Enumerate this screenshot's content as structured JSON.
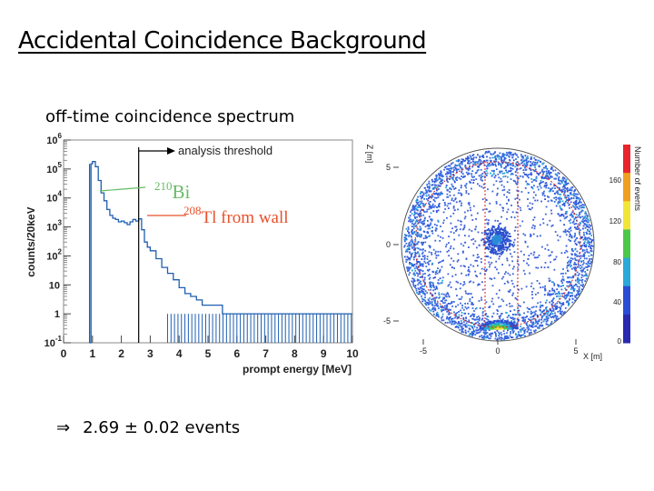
{
  "slide": {
    "title": "Accidental Coincidence Background",
    "subtitle": "off-time coincidence spectrum",
    "result_arrow": "⇒",
    "result_text": "2.69 ± 0.02 events"
  },
  "chart_data": [
    {
      "type": "line",
      "title": "",
      "xlabel": "prompt energy [MeV]",
      "ylabel": "counts/20keV",
      "xlim": [
        0,
        10
      ],
      "ylim": [
        0.1,
        1000000
      ],
      "yscale": "log",
      "x_ticks": [
        "0",
        "1",
        "2",
        "3",
        "4",
        "5",
        "6",
        "7",
        "8",
        "9",
        "10"
      ],
      "y_ticks": [
        {
          "base": "10",
          "exp": "-1"
        },
        {
          "base": "1",
          "exp": ""
        },
        {
          "base": "10",
          "exp": ""
        },
        {
          "base": "10",
          "exp": "2"
        },
        {
          "base": "10",
          "exp": "3"
        },
        {
          "base": "10",
          "exp": "4"
        },
        {
          "base": "10",
          "exp": "5"
        },
        {
          "base": "10",
          "exp": "6"
        }
      ],
      "threshold_energy": 2.6,
      "threshold_label": "analysis threshold",
      "annotations": [
        {
          "sup": "210",
          "text": "Bi",
          "color": "#66bb66",
          "points_to_x": 1.25
        },
        {
          "sup": "208",
          "text": "Tl from wall",
          "color": "#e8502a",
          "points_to_x": 2.6
        }
      ],
      "series": [
        {
          "name": "off-time coincidence",
          "color": "#1f5fb0",
          "x": [
            0.9,
            0.95,
            1.0,
            1.1,
            1.2,
            1.3,
            1.4,
            1.5,
            1.6,
            1.7,
            1.8,
            1.9,
            2.0,
            2.1,
            2.2,
            2.3,
            2.4,
            2.5,
            2.6,
            2.7,
            2.8,
            2.9,
            3.0,
            3.2,
            3.4,
            3.6,
            3.8,
            4.0,
            4.2,
            4.4,
            4.6,
            4.8,
            5.0,
            5.5,
            6.0,
            6.5,
            7.0,
            7.5,
            8.0,
            8.5,
            9.0,
            9.5,
            10.0
          ],
          "y": [
            0.1,
            150000,
            180000,
            120000,
            40000,
            15000,
            8000,
            4000,
            2500,
            2000,
            1800,
            1500,
            1600,
            1400,
            1200,
            1500,
            1800,
            1600,
            1900,
            800,
            300,
            200,
            150,
            80,
            40,
            25,
            15,
            8,
            5,
            4,
            3,
            2,
            2,
            1,
            1,
            1,
            1,
            1,
            1,
            1,
            1,
            1,
            1
          ]
        }
      ]
    },
    {
      "type": "heatmap",
      "title": "",
      "xlabel": "X [m]",
      "ylabel": "Z [m]",
      "colorbar_label": "Number of events",
      "x_ticks": [
        "-5",
        "0",
        "5"
      ],
      "y_ticks": [
        "5",
        "0",
        "-5"
      ],
      "colorbar_ticks": [
        "160",
        "120",
        "80",
        "40",
        "0"
      ],
      "colorbar_colors": [
        "#e8242c",
        "#f0a020",
        "#f2e53a",
        "#4cc84a",
        "#2aa8d8",
        "#2a4cd6",
        "#2a2ab0"
      ],
      "features": [
        "spherical shell surface events",
        "central hot spot",
        "bottom hot spot near z=-5.5"
      ]
    }
  ]
}
